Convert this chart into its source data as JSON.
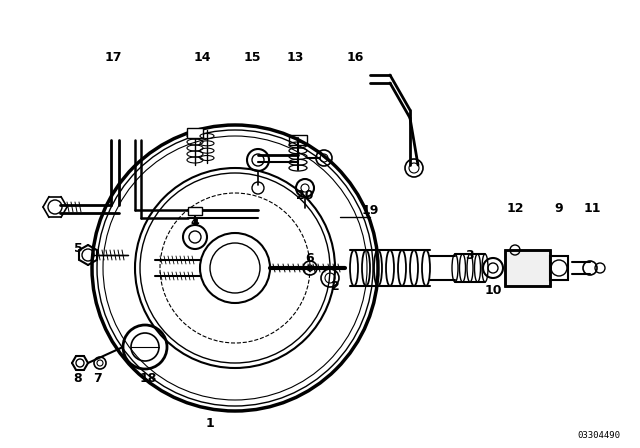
{
  "bg_color": "#ffffff",
  "line_color": "#000000",
  "fig_width": 6.4,
  "fig_height": 4.48,
  "dpi": 100,
  "part_number": "03304490",
  "diagram_number": "1"
}
